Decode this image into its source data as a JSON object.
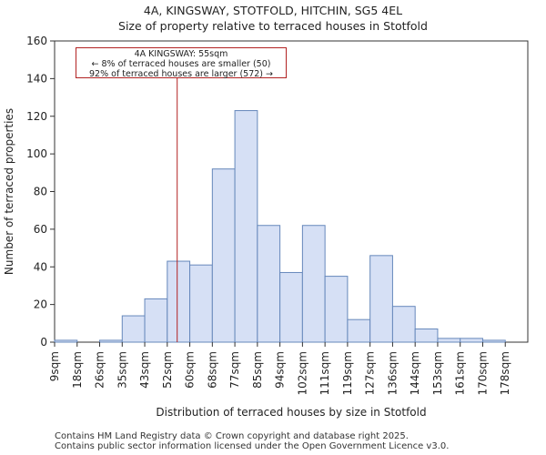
{
  "title_line1": "4A, KINGSWAY, STOTFOLD, HITCHIN, SG5 4EL",
  "title_line2": "Size of property relative to terraced houses in Stotfold",
  "footer_line1": "Contains HM Land Registry data © Crown copyright and database right 2025.",
  "footer_line2": "Contains public sector information licensed under the Open Government Licence v3.0.",
  "annotation": {
    "line1": "4A KINGSWAY: 55sqm",
    "line2": "← 8% of terraced houses are smaller (50)",
    "line3": "92% of terraced houses are larger (572) →"
  },
  "colors": {
    "bar_fill": "#d6e0f5",
    "bar_stroke": "#6688bb",
    "marker": "#b22222"
  },
  "chart_data": {
    "type": "bar",
    "title": "Size of property relative to terraced houses in Stotfold",
    "xlabel": "Distribution of terraced houses by size in Stotfold",
    "ylabel": "Number of terraced properties",
    "categories": [
      "9sqm",
      "18sqm",
      "26sqm",
      "35sqm",
      "43sqm",
      "52sqm",
      "60sqm",
      "68sqm",
      "77sqm",
      "85sqm",
      "94sqm",
      "102sqm",
      "111sqm",
      "119sqm",
      "127sqm",
      "136sqm",
      "144sqm",
      "153sqm",
      "161sqm",
      "170sqm",
      "178sqm"
    ],
    "values": [
      1,
      0,
      1,
      14,
      23,
      43,
      41,
      92,
      123,
      62,
      37,
      62,
      35,
      12,
      46,
      19,
      7,
      2,
      2,
      1,
      0
    ],
    "ylim": [
      0,
      160
    ],
    "yticks": [
      0,
      20,
      40,
      60,
      80,
      100,
      120,
      140,
      160
    ],
    "marker_value_sqm": 55,
    "marker_position_bins": 5.44
  }
}
